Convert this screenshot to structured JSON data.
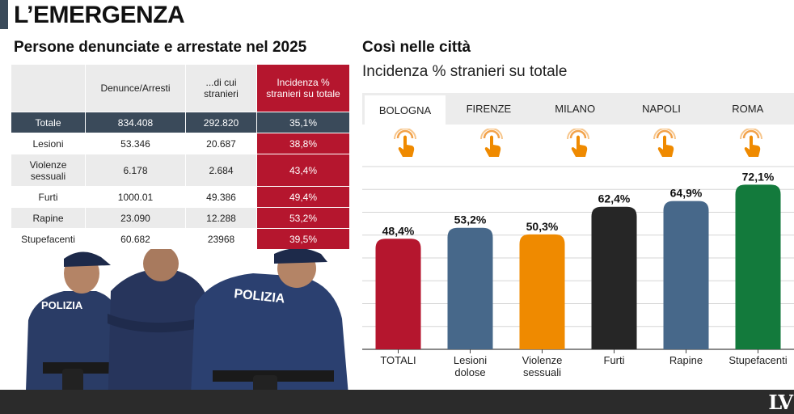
{
  "title": "L’EMERGENZA",
  "left": {
    "heading": "Persone denunciate e arrestate nel 2025",
    "table": {
      "headers": [
        "",
        "Denunce/Arresti",
        "...di cui stranieri",
        "Incidenza % stranieri su totale"
      ],
      "rows": [
        {
          "label": "Totale",
          "denunce": "834.408",
          "stranieri": "292.820",
          "incidenza": "35,1%"
        },
        {
          "label": "Lesioni",
          "denunce": "53.346",
          "stranieri": "20.687",
          "incidenza": "38,8%"
        },
        {
          "label": "Violenze sessuali",
          "denunce": "6.178",
          "stranieri": "2.684",
          "incidenza": "43,4%"
        },
        {
          "label": "Furti",
          "denunce": "1000.01",
          "stranieri": "49.386",
          "incidenza": "49,4%"
        },
        {
          "label": "Rapine",
          "denunce": "23.090",
          "stranieri": "12.288",
          "incidenza": "53,2%"
        },
        {
          "label": "Stupefacenti",
          "denunce": "60.682",
          "stranieri": "23968",
          "incidenza": "39,5%"
        }
      ]
    },
    "photo": {
      "vest_text": "POLIZIA"
    }
  },
  "right": {
    "heading": "Così nelle città",
    "subheading": "Incidenza % stranieri su totale",
    "tabs": [
      "BOLOGNA",
      "FIRENZE",
      "MILANO",
      "NAPOLI",
      "ROMA"
    ],
    "active_tab": "BOLOGNA",
    "tap_icon": "tap-hand-icon"
  },
  "chart_data": {
    "type": "bar",
    "categories": [
      "TOTALI",
      "Lesioni dolose",
      "Violenze sessuali",
      "Furti",
      "Rapine",
      "Stupefacenti"
    ],
    "values": [
      48.4,
      53.2,
      50.3,
      62.4,
      64.9,
      72.1
    ],
    "value_labels": [
      "48,4%",
      "53,2%",
      "50,3%",
      "62,4%",
      "64,9%",
      "72,1%"
    ],
    "colors": [
      "#b5162e",
      "#47688a",
      "#ef8a00",
      "#262626",
      "#47688a",
      "#137a3c"
    ],
    "grid": true,
    "ylim": [
      0,
      80
    ]
  },
  "logo": "LV"
}
